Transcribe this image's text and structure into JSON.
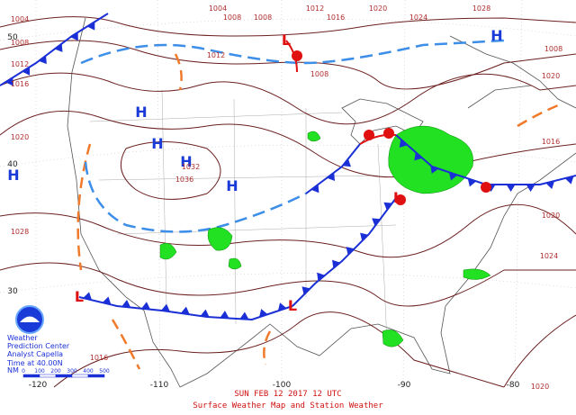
{
  "header": {
    "date": "SUN FEB 12 2017 12 UTC",
    "title": "Surface Weather Map and Station Weather"
  },
  "credit": {
    "line1": "Weather",
    "line2": "Prediction Center",
    "line3": "Analyst Capella",
    "time_note": "Time at 40.00N"
  },
  "scale": {
    "unit": "NM",
    "marks": [
      "0",
      "100",
      "200",
      "300",
      "400",
      "500"
    ]
  },
  "highs": [
    {
      "label": "H"
    },
    {
      "label": "H"
    },
    {
      "label": "H"
    },
    {
      "label": "H"
    },
    {
      "label": "H"
    },
    {
      "label": "H"
    }
  ],
  "lows": [
    {
      "label": "L"
    },
    {
      "label": "L"
    },
    {
      "label": "L"
    },
    {
      "label": "L"
    }
  ],
  "isobar_labels": [
    "1004",
    "1008",
    "1008",
    "1012",
    "1016",
    "1020",
    "1024",
    "1028",
    "1004",
    "1008",
    "1012",
    "1016",
    "1020",
    "1028",
    "1032",
    "1036",
    "1020",
    "1016",
    "1020",
    "1024",
    "1008",
    "1016",
    "1020",
    "1012",
    "1008"
  ],
  "lat_labels": [
    "50",
    "40",
    "30"
  ],
  "lon_labels": [
    "-120",
    "-110",
    "-100",
    "-90",
    "-80"
  ]
}
